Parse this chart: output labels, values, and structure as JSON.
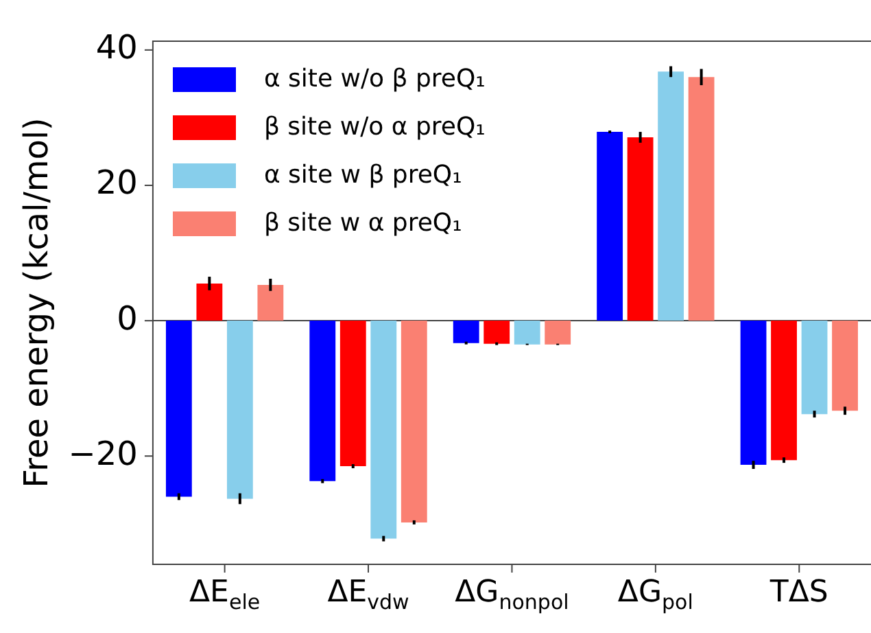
{
  "chart_data": {
    "type": "bar",
    "ylabel": "Free energy (kcal/mol)",
    "categories": [
      "ΔE$_{ele}$",
      "ΔE$_{vdw}$",
      "ΔG$_{nonpol}$",
      "ΔG$_{pol}$",
      "TΔS"
    ],
    "series": [
      {
        "name": "α site w/o β preQ₁",
        "color": "#0000ff",
        "values": [
          -26.0,
          -23.7,
          -3.3,
          27.9,
          -21.3
        ],
        "errors": [
          0.5,
          0.3,
          0.2,
          0.2,
          0.6
        ]
      },
      {
        "name": "β site w/o α preQ₁",
        "color": "#ff0000",
        "values": [
          5.5,
          -21.5,
          -3.4,
          27.1,
          -20.6
        ],
        "errors": [
          1.0,
          0.3,
          0.2,
          0.8,
          0.4
        ]
      },
      {
        "name": "α site w β preQ₁",
        "color": "#87ceeb",
        "values": [
          -26.3,
          -32.2,
          -3.5,
          36.8,
          -13.8
        ],
        "errors": [
          0.8,
          0.4,
          0.1,
          0.8,
          0.5
        ]
      },
      {
        "name": "β site w α preQ₁",
        "color": "#fa8072",
        "values": [
          5.3,
          -29.8,
          -3.5,
          36.0,
          -13.3
        ],
        "errors": [
          0.9,
          0.3,
          0.1,
          1.2,
          0.6
        ]
      }
    ],
    "ylim": [
      -36,
      41.3
    ],
    "yticks": [
      {
        "value": -20,
        "label": "−20"
      },
      0,
      20,
      40
    ],
    "grid": false,
    "legend": "top left",
    "ref_lines": [
      {
        "axis": "y",
        "value": 0,
        "color": "#444444"
      }
    ]
  }
}
